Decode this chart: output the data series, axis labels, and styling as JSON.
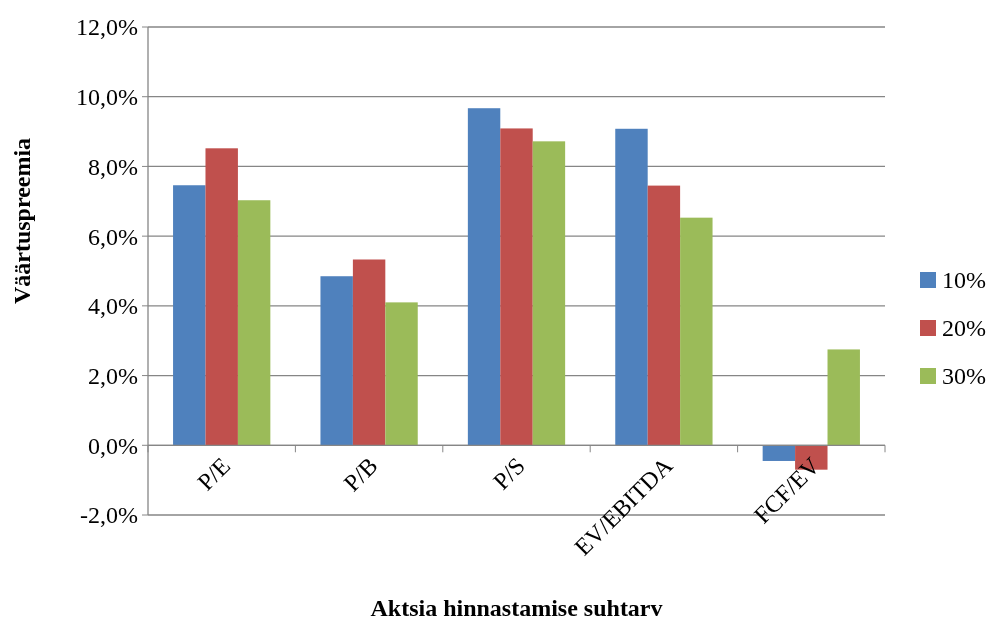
{
  "chart_data": {
    "type": "bar",
    "xlabel": "Aktsia hinnastamise suhtarv",
    "ylabel": "Väärtuspreemia",
    "categories": [
      "P/E",
      "P/B",
      "P/S",
      "EV/EBITDA",
      "FCF/EV"
    ],
    "series": [
      {
        "name": "10%",
        "color": "#4f81bd",
        "values": [
          7.46,
          4.85,
          9.67,
          9.08,
          -0.45
        ]
      },
      {
        "name": "20%",
        "color": "#c0504d",
        "values": [
          8.52,
          5.33,
          9.09,
          7.45,
          -0.7
        ]
      },
      {
        "name": "30%",
        "color": "#9bbb59",
        "values": [
          7.03,
          4.1,
          8.72,
          6.53,
          2.75
        ]
      }
    ],
    "ylim": [
      -2,
      12
    ],
    "yticks": [
      {
        "value": -2,
        "label": "-2,0%"
      },
      {
        "value": 0,
        "label": "0,0%"
      },
      {
        "value": 2,
        "label": "2,0%"
      },
      {
        "value": 4,
        "label": "4,0%"
      },
      {
        "value": 6,
        "label": "6,0%"
      },
      {
        "value": 8,
        "label": "8,0%"
      },
      {
        "value": 10,
        "label": "10,0%"
      },
      {
        "value": 12,
        "label": "12,0%"
      }
    ],
    "grid": "y",
    "legend": "right"
  }
}
